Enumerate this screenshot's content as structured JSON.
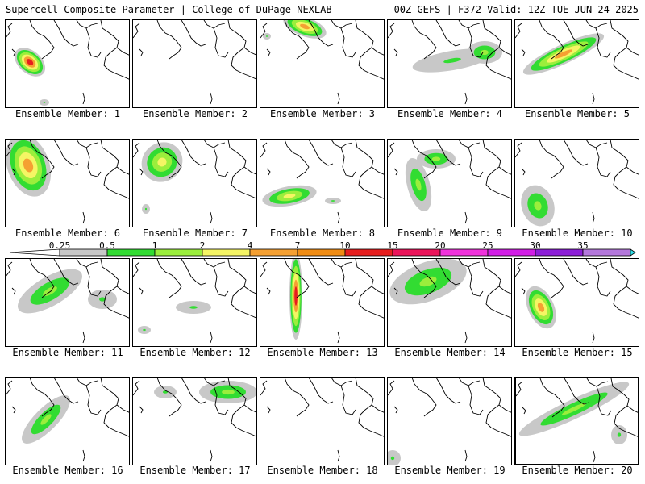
{
  "header": {
    "left": "Supercell Composite Parameter | College of DuPage NEXLAB",
    "right": "00Z GEFS | F372 Valid: 12Z TUE JUN 24 2025"
  },
  "colorbar": {
    "labels": [
      "0.25",
      "0.5",
      "1",
      "2",
      "4",
      "7",
      "10",
      "15",
      "20",
      "25",
      "30",
      "35"
    ],
    "colors": [
      "#c8c8c8",
      "#32dc32",
      "#9bee3c",
      "#f5f564",
      "#f5a032",
      "#f08c14",
      "#e61e1e",
      "#eb145a",
      "#f032dc",
      "#d21ee6",
      "#8c1ed7",
      "#b478dc",
      "#32e1eb"
    ]
  },
  "panels": [
    {
      "label": "Ensemble Member: 1"
    },
    {
      "label": "Ensemble Member: 2"
    },
    {
      "label": "Ensemble Member: 3"
    },
    {
      "label": "Ensemble Member: 4"
    },
    {
      "label": "Ensemble Member: 5"
    },
    {
      "label": "Ensemble Member: 6"
    },
    {
      "label": "Ensemble Member: 7"
    },
    {
      "label": "Ensemble Member: 8"
    },
    {
      "label": "Ensemble Member: 9"
    },
    {
      "label": "Ensemble Member: 10"
    },
    {
      "label": "Ensemble Member: 11"
    },
    {
      "label": "Ensemble Member: 12"
    },
    {
      "label": "Ensemble Member: 13"
    },
    {
      "label": "Ensemble Member: 14"
    },
    {
      "label": "Ensemble Member: 15"
    },
    {
      "label": "Ensemble Member: 16"
    },
    {
      "label": "Ensemble Member: 17"
    },
    {
      "label": "Ensemble Member: 18"
    },
    {
      "label": "Ensemble Member: 19"
    },
    {
      "label": "Ensemble Member: 20"
    }
  ]
}
